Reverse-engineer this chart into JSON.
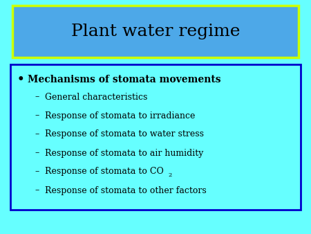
{
  "title": "Plant water regime",
  "title_fontsize": 18,
  "title_color": "#000000",
  "title_bg_color": "#4da8e8",
  "title_border_color": "#ccff00",
  "background_color": "#66ffff",
  "bullet_header": "Mechanisms of stomata movements",
  "bullet_header_fontsize": 10,
  "sub_items": [
    "General characteristics",
    "Response of stomata to irradiance",
    "Response of stomata to water stress",
    "Response of stomata to air humidity",
    "Response of stomata to CO₂",
    "Response of stomata to other factors"
  ],
  "sub_fontsize": 9,
  "content_box_border_color": "#0000cc",
  "content_box_bg_color": "#66ffff",
  "text_color": "#000000",
  "sub_text_color": "#000000"
}
